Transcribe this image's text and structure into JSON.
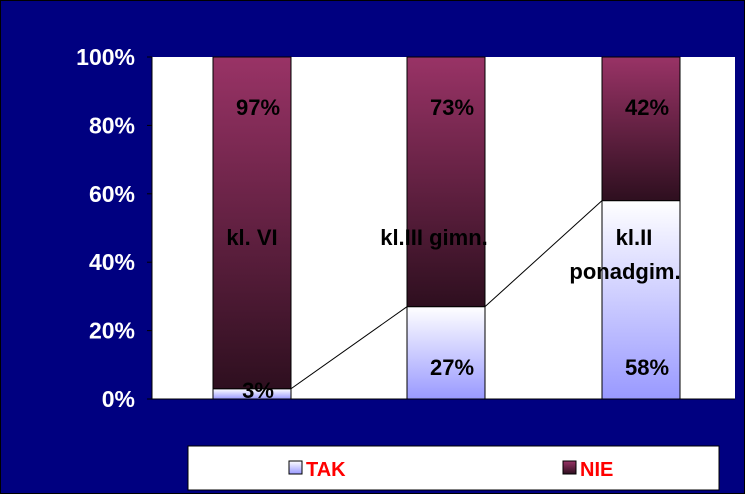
{
  "chart_data": {
    "type": "bar",
    "stacked": true,
    "percent": true,
    "title": "",
    "xlabel": "",
    "ylabel": "",
    "ylim": [
      0,
      100
    ],
    "yticks": [
      0,
      20,
      40,
      60,
      80,
      100
    ],
    "ytick_labels": [
      "0%",
      "20%",
      "40%",
      "60%",
      "80%",
      "100%"
    ],
    "categories": [
      "kl. VI",
      "kl.III gimn.",
      "kl.II ponadgim."
    ],
    "category_label_lines": [
      [
        "kl. VI"
      ],
      [
        "kl.III gimn."
      ],
      [
        "kl.II",
        "ponadgim."
      ]
    ],
    "series": [
      {
        "name": "TAK",
        "values": [
          3,
          27,
          58
        ],
        "labels": [
          "3%",
          "27%",
          "58%"
        ],
        "color_top": "#ffffff",
        "color_bottom": "#9999ff"
      },
      {
        "name": "NIE",
        "values": [
          97,
          73,
          42
        ],
        "labels": [
          "97%",
          "73%",
          "42%"
        ],
        "color_top": "#993366",
        "color_bottom": "#2e0f1f"
      }
    ],
    "series_lines": true,
    "grid": false,
    "legend_position": "bottom",
    "colors": {
      "outer_background": "#000080",
      "plot_background": "#ffffff",
      "legend_text": "#ff0000",
      "text": "#000000",
      "axis_text": "#ffffff"
    }
  }
}
